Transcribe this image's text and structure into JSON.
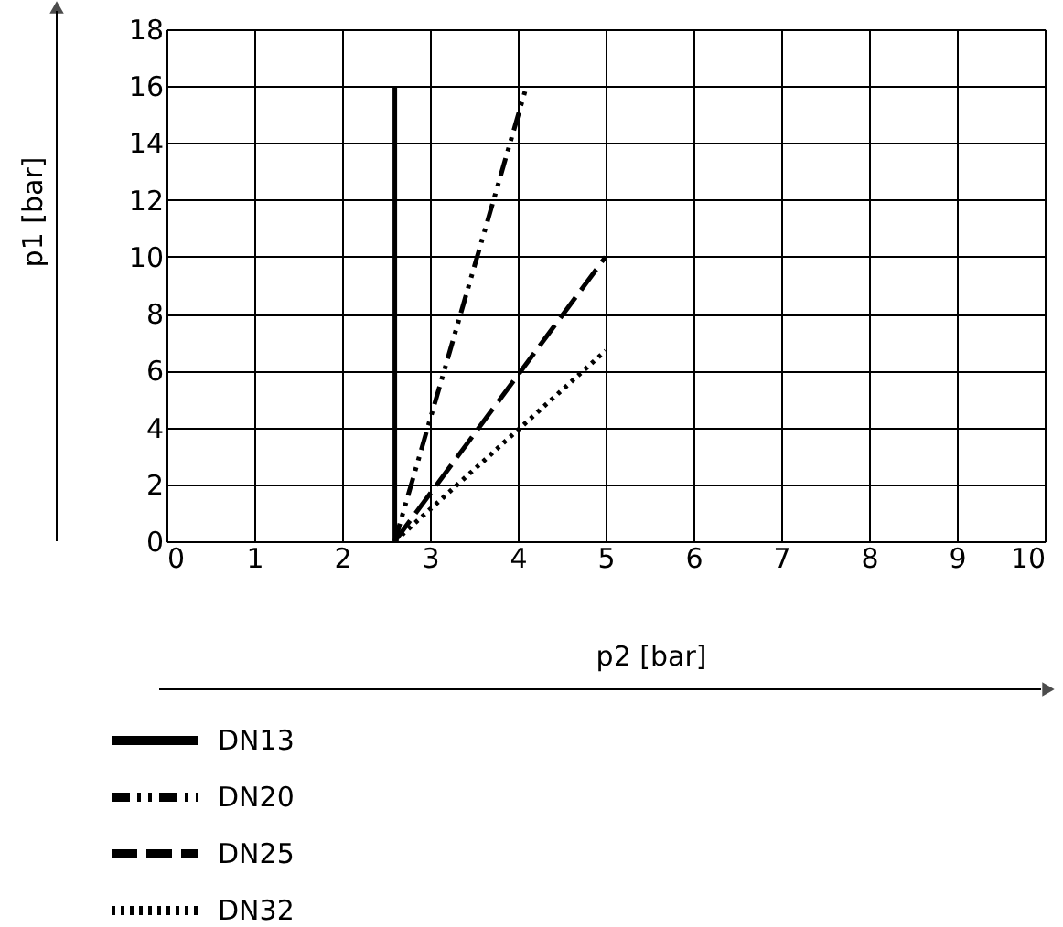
{
  "chart_data": {
    "type": "line",
    "xlabel": "p2 [bar]",
    "ylabel": "p1 [bar]",
    "xlim": [
      0,
      10
    ],
    "ylim": [
      0,
      18
    ],
    "xticks": [
      0,
      1,
      2,
      3,
      4,
      5,
      6,
      7,
      8,
      9,
      10
    ],
    "yticks": [
      0,
      2,
      4,
      6,
      8,
      10,
      12,
      14,
      16,
      18
    ],
    "grid": true,
    "legend": "bottom",
    "series": [
      {
        "name": "DN13",
        "color": "#000000",
        "line_style": "solid",
        "x": [
          2.6,
          2.6
        ],
        "values": [
          0,
          16
        ]
      },
      {
        "name": "DN20",
        "color": "#000000",
        "line_style": "dashdotdot",
        "x": [
          2.6,
          4.1
        ],
        "values": [
          0,
          16
        ]
      },
      {
        "name": "DN25",
        "color": "#000000",
        "line_style": "dashed",
        "x": [
          2.6,
          5
        ],
        "values": [
          0,
          10
        ]
      },
      {
        "name": "DN32",
        "color": "#000000",
        "line_style": "dotted",
        "x": [
          2.6,
          5
        ],
        "values": [
          0,
          6.7
        ]
      }
    ]
  }
}
